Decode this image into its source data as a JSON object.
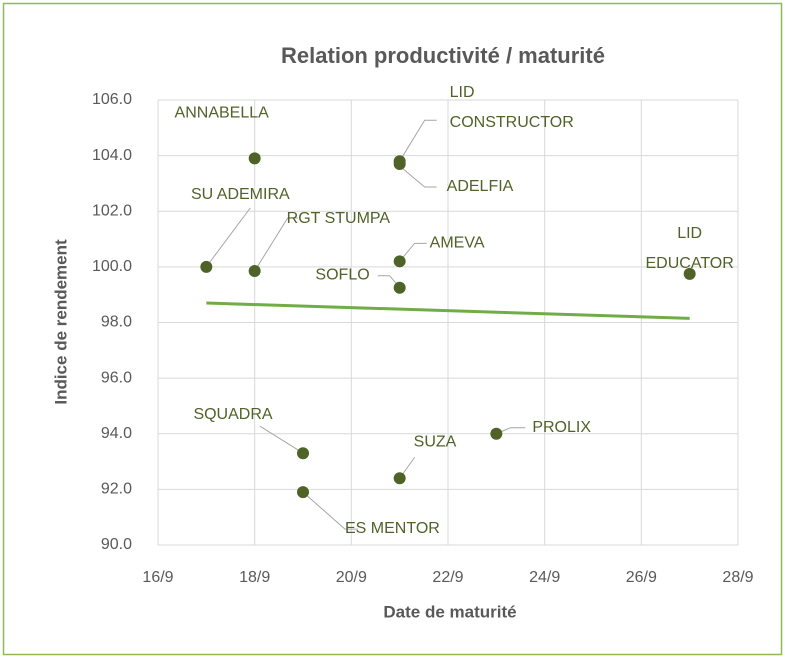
{
  "chart_data": {
    "type": "scatter",
    "title": "Relation productivité / maturité",
    "xlabel": "Date de maturité",
    "ylabel": "Indice de rendement",
    "labels": [
      "ANNABELLA",
      "SU ADEMIRA",
      "RGT STUMPA",
      "LID CONSTRUCTOR",
      "ADELFIA",
      "AMEVA",
      "SOFLO",
      "LID EDUCATOR",
      "SQUADRA",
      "ES MENTOR",
      "SUZA",
      "PROLIX"
    ],
    "x": [
      18,
      17,
      18,
      21,
      21,
      21,
      21,
      27,
      19,
      19,
      21,
      23
    ],
    "values": [
      103.9,
      100.0,
      99.85,
      103.8,
      103.7,
      100.2,
      99.25,
      99.75,
      93.3,
      91.9,
      92.4,
      94.0
    ],
    "color": "#4f6228",
    "trendline": {
      "x": [
        17,
        27
      ],
      "values": [
        98.7,
        98.15
      ],
      "color": "#70ad47"
    },
    "xlim": [
      16,
      28
    ],
    "xticks": [
      {
        "value": 16,
        "label": "16/9"
      },
      {
        "value": 18,
        "label": "18/9"
      },
      {
        "value": 20,
        "label": "20/9"
      },
      {
        "value": 22,
        "label": "22/9"
      },
      {
        "value": 24,
        "label": "24/9"
      },
      {
        "value": 26,
        "label": "26/9"
      },
      {
        "value": 28,
        "label": "28/9"
      }
    ],
    "ylim": [
      90,
      106
    ],
    "yticks": [
      {
        "value": 90,
        "label": "90.0"
      },
      {
        "value": 92,
        "label": "92.0"
      },
      {
        "value": 94,
        "label": "94.0"
      },
      {
        "value": 96,
        "label": "96.0"
      },
      {
        "value": 98,
        "label": "98.0"
      },
      {
        "value": 100,
        "label": "100.0"
      },
      {
        "value": 102,
        "label": "102.0"
      },
      {
        "value": 104,
        "label": "104.0"
      },
      {
        "value": 106,
        "label": "106.0"
      }
    ],
    "grid": true
  }
}
